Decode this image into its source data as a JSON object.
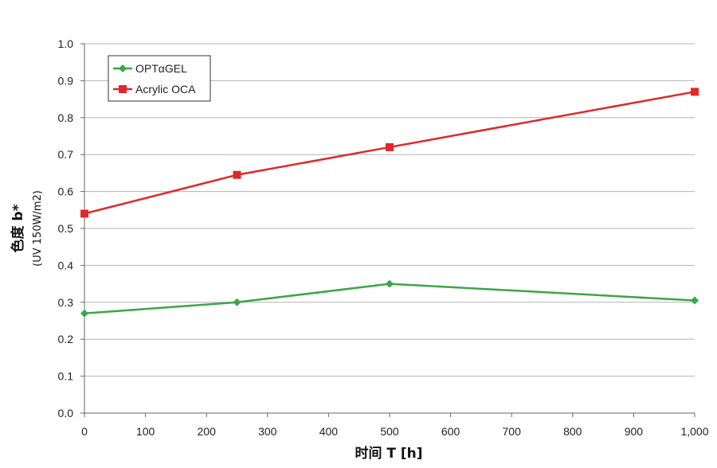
{
  "chart_data": {
    "type": "line",
    "xlabel": "时间 T [h]",
    "ylabel": "色度 b*",
    "ylabel_sub": "(UV 150W/m2)",
    "xlim": [
      0,
      1000
    ],
    "ylim": [
      0,
      1.0
    ],
    "x_ticks": [
      0,
      100,
      200,
      300,
      400,
      500,
      600,
      700,
      800,
      900,
      1000
    ],
    "x_tick_labels": [
      "0",
      "100",
      "200",
      "300",
      "400",
      "500",
      "600",
      "700",
      "800",
      "900",
      "1,000"
    ],
    "y_ticks": [
      0,
      0.1,
      0.2,
      0.3,
      0.4,
      0.5,
      0.6,
      0.7,
      0.8,
      0.9,
      1.0
    ],
    "y_tick_labels": [
      "0.0",
      "0.1",
      "0.2",
      "0.3",
      "0.4",
      "0.5",
      "0.6",
      "0.7",
      "0.8",
      "0.9",
      "1.0"
    ],
    "grid": true,
    "legend_position": "top-left",
    "series": [
      {
        "name": "OPTαGEL",
        "color": "#3aa64a",
        "marker": "diamond",
        "x": [
          0,
          250,
          500,
          1000
        ],
        "values": [
          0.27,
          0.3,
          0.35,
          0.305
        ]
      },
      {
        "name": "Acrylic OCA",
        "color": "#e0282a",
        "marker": "square",
        "x": [
          0,
          250,
          500,
          1000
        ],
        "values": [
          0.54,
          0.645,
          0.72,
          0.87
        ]
      }
    ]
  }
}
